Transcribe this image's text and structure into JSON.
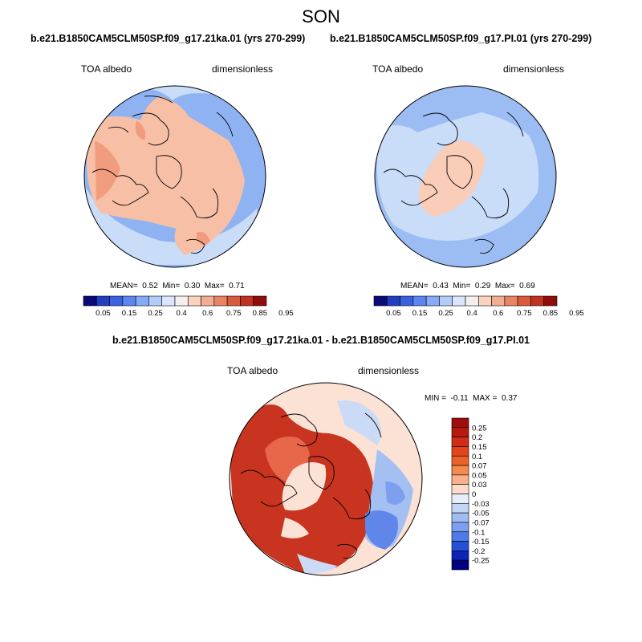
{
  "page": {
    "season": "SON",
    "panel1": {
      "title": "b.e21.B1850CAM5CLM50SP.f09_g17.21ka.01 (yrs 270-299)",
      "variable": "TOA albedo",
      "units": "dimensionless",
      "stats": {
        "mean_label": "MEAN=",
        "mean": "0.52",
        "min_label": "Min=",
        "min": "0.30",
        "max_label": "Max=",
        "max": "0.71"
      }
    },
    "panel2": {
      "title": "b.e21.B1850CAM5CLM50SP.f09_g17.PI.01 (yrs 270-299)",
      "variable": "TOA albedo",
      "units": "dimensionless",
      "stats": {
        "mean_label": "MEAN=",
        "mean": "0.43",
        "min_label": "Min=",
        "min": "0.29",
        "max_label": "Max=",
        "max": "0.69"
      }
    },
    "panel3": {
      "title": "b.e21.B1850CAM5CLM50SP.f09_g17.21ka.01 - b.e21.B1850CAM5CLM50SP.f09_g17.PI.01",
      "variable": "TOA albedo",
      "units": "dimensionless",
      "stats": {
        "min_label": "MIN =",
        "min": "-0.11",
        "max_label": "MAX =",
        "max": "0.37"
      }
    }
  },
  "chart_data": [
    {
      "type": "heatmap",
      "projection": "north polar stereographic",
      "title": "b.e21.B1850CAM5CLM50SP.f09_g17.21ka.01 (yrs 270-299)",
      "field": "TOA albedo",
      "units": "dimensionless",
      "season": "SON",
      "mean": 0.52,
      "min": 0.3,
      "max": 0.71,
      "colorbar": {
        "ticks": [
          "0.05",
          "0.15",
          "0.25",
          "0.4",
          "0.6",
          "0.75",
          "0.85",
          "0.95"
        ],
        "colors": [
          "#0a0a78",
          "#1f3fbf",
          "#3a62e0",
          "#5b86f0",
          "#86aaf5",
          "#b3ccf8",
          "#d9e6fb",
          "#f4f0ee",
          "#f9d2c0",
          "#f3ad92",
          "#e88364",
          "#d95a3c",
          "#c13222",
          "#8f0d0d"
        ]
      },
      "summary": "Land areas (North America, Eurasia) high albedo 0.6-0.75; oceans 0.4-0.6"
    },
    {
      "type": "heatmap",
      "projection": "north polar stereographic",
      "title": "b.e21.B1850CAM5CLM50SP.f09_g17.PI.01 (yrs 270-299)",
      "field": "TOA albedo",
      "units": "dimensionless",
      "season": "SON",
      "mean": 0.43,
      "min": 0.29,
      "max": 0.69,
      "colorbar": {
        "ticks": [
          "0.05",
          "0.15",
          "0.25",
          "0.4",
          "0.6",
          "0.75",
          "0.85",
          "0.95"
        ],
        "colors": [
          "#0a0a78",
          "#1f3fbf",
          "#3a62e0",
          "#5b86f0",
          "#86aaf5",
          "#b3ccf8",
          "#d9e6fb",
          "#f4f0ee",
          "#f9d2c0",
          "#f3ad92",
          "#e88364",
          "#d95a3c",
          "#c13222",
          "#8f0d0d"
        ]
      },
      "summary": "Central Arctic 0.6-0.75; most of domain 0.4-0.6"
    },
    {
      "type": "heatmap",
      "projection": "north polar stereographic",
      "title": "b.e21.B1850CAM5CLM50SP.f09_g17.21ka.01 - b.e21.B1850CAM5CLM50SP.f09_g17.PI.01",
      "field": "TOA albedo difference",
      "units": "dimensionless",
      "min": -0.11,
      "max": 0.37,
      "colorbar": {
        "ticks": [
          "0.25",
          "0.2",
          "0.15",
          "0.1",
          "0.07",
          "0.05",
          "0.03",
          "0",
          "-0.03",
          "-0.05",
          "-0.07",
          "-0.1",
          "-0.15",
          "-0.2",
          "-0.25"
        ],
        "colors": [
          "#a00d0d",
          "#b81a10",
          "#cf2e14",
          "#e0451c",
          "#ec6128",
          "#f38a4e",
          "#f8b18a",
          "#fcdcc8",
          "#e6eefb",
          "#c4d6f6",
          "#a0bdf1",
          "#7d9ff0",
          "#4e7be8",
          "#2450d6",
          "#0a24b8",
          "#000080"
        ]
      },
      "summary": "Strong positive anomalies (0.15-0.3) over North America and Eurasian ice sheets; negative anomalies (-0.05 to -0.1) over North Pacific/Bering region"
    }
  ]
}
